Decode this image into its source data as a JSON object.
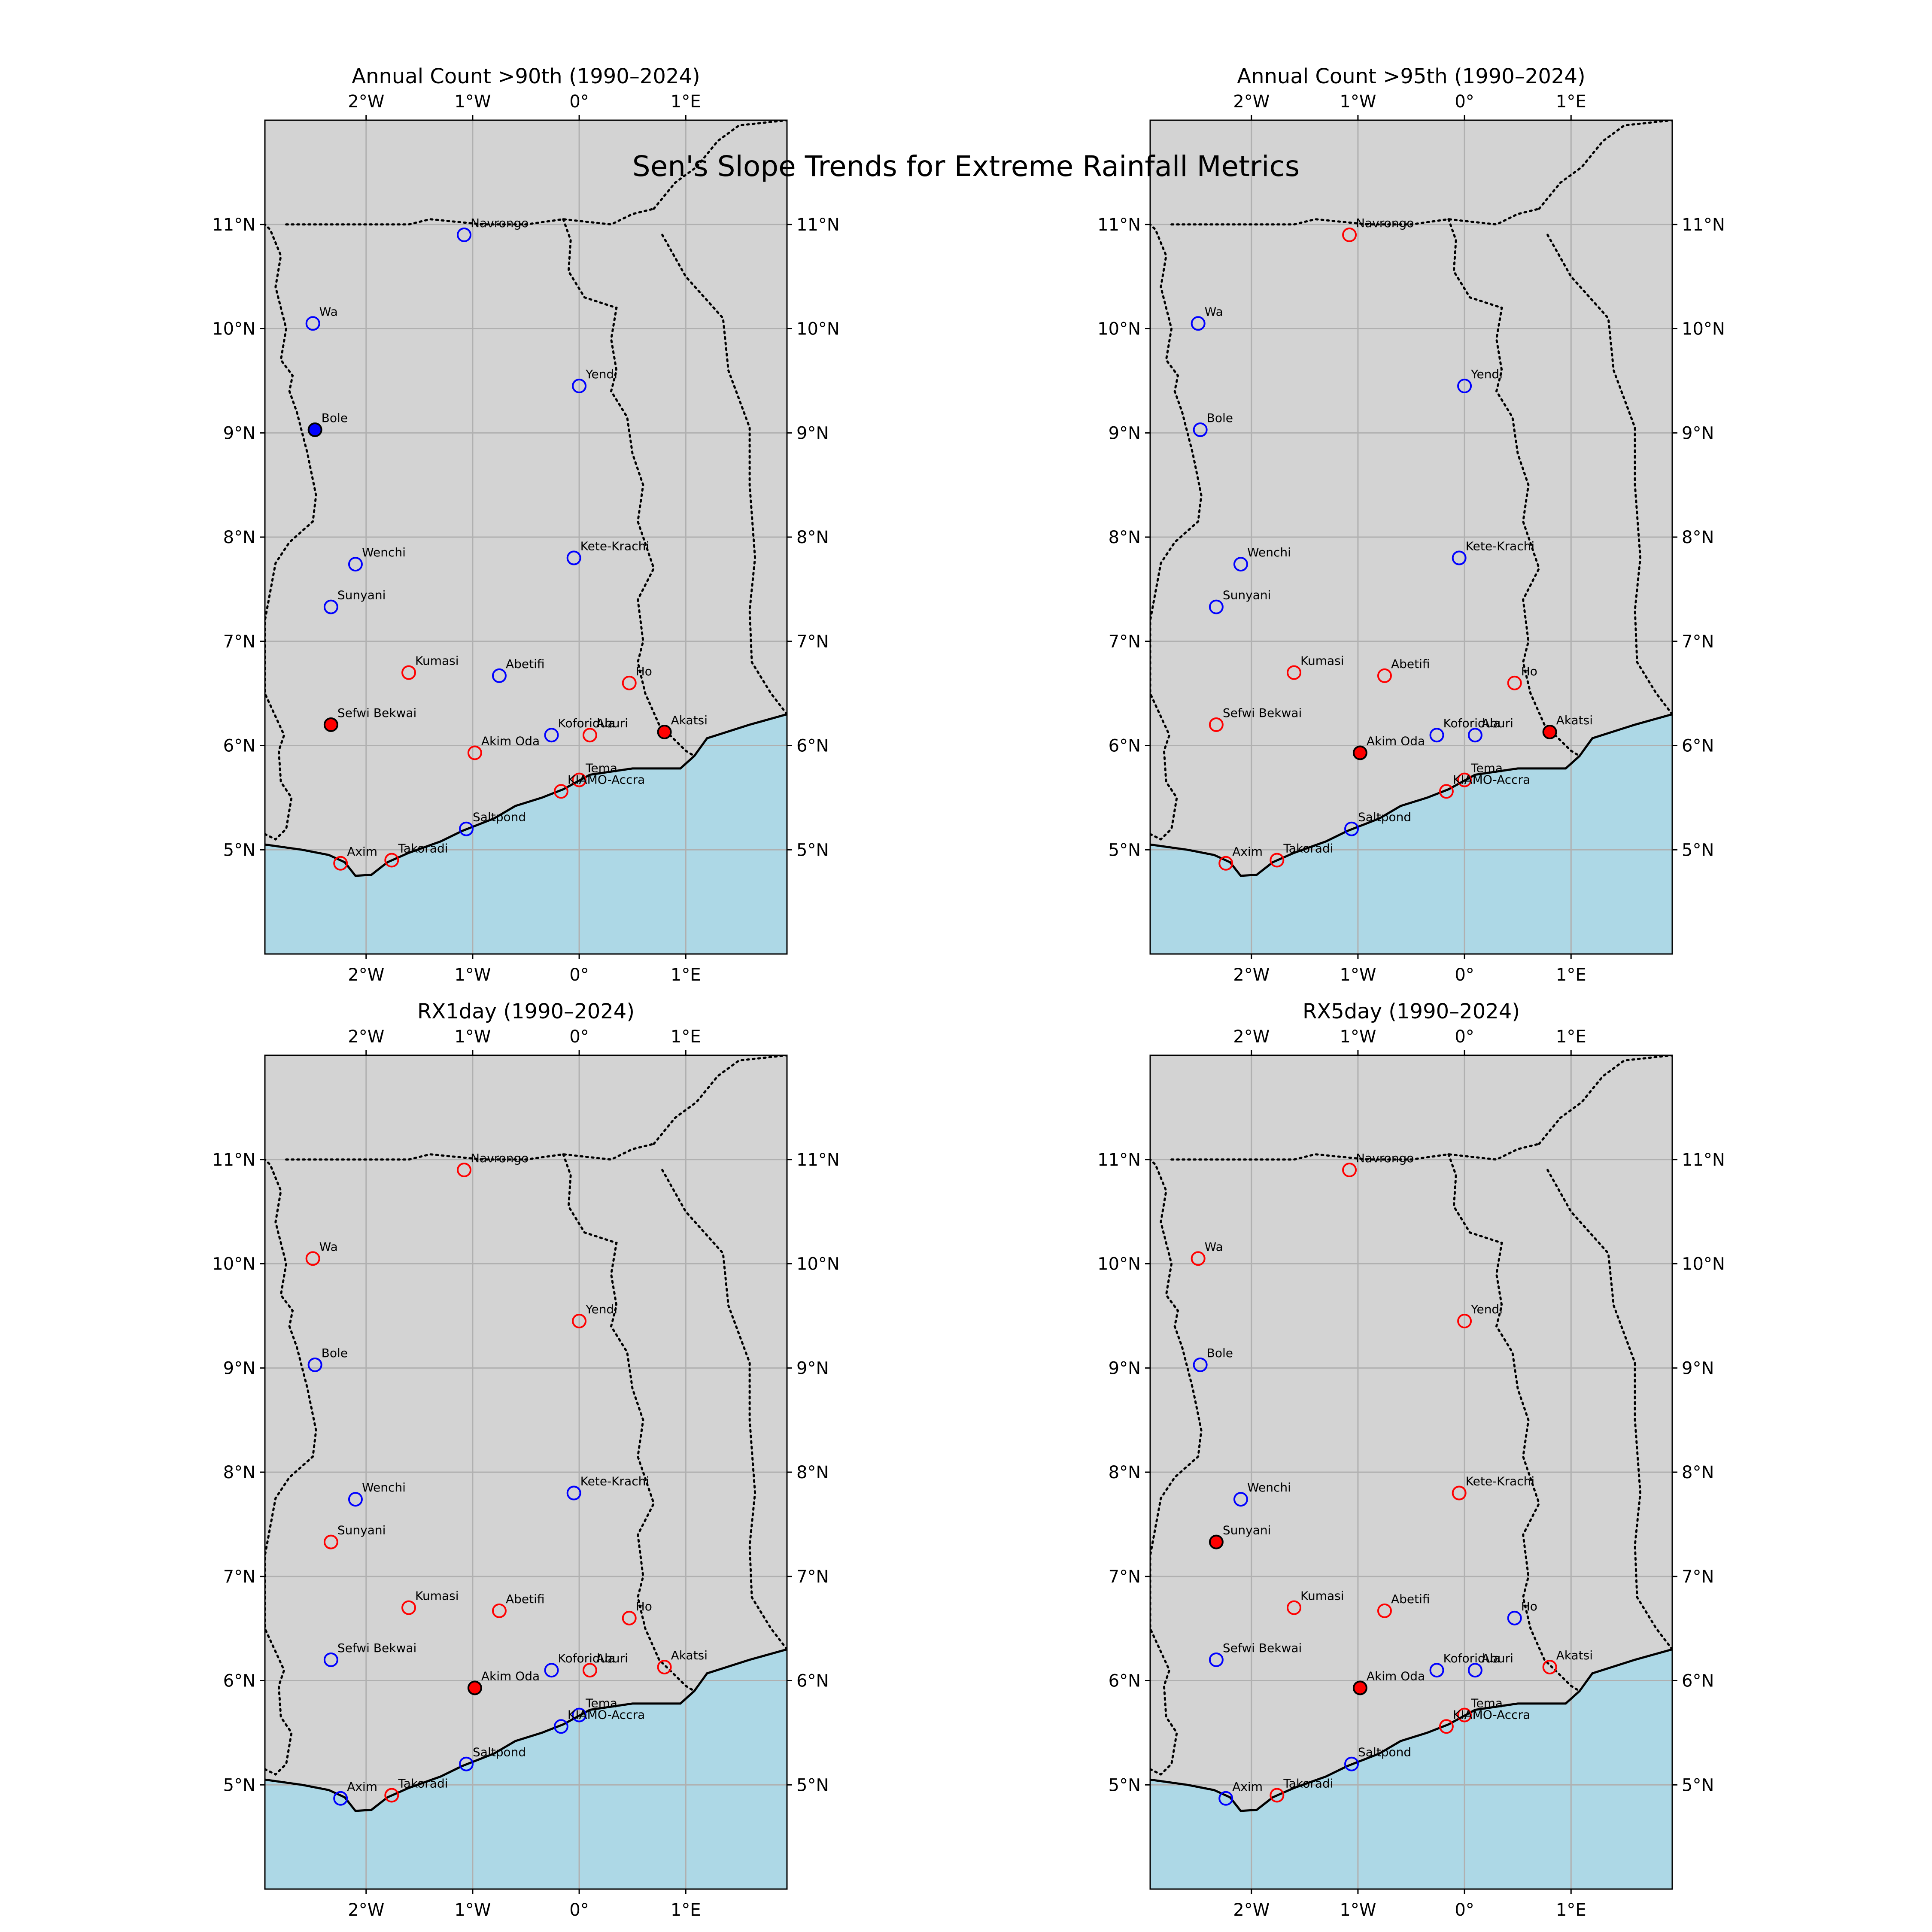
{
  "figure": {
    "title": "Sen's Slope Trends for Extreme Rainfall Metrics",
    "colors": {
      "land": "#d3d3d3",
      "ocean": "#add8e6",
      "gridline": "#b0b0b0",
      "positive_trend": "#ff0000",
      "negative_trend": "#0000ff",
      "significant_fill": "filled marker"
    }
  },
  "axes": {
    "lon_range": [
      -2.95,
      1.95
    ],
    "lat_range": [
      4.0,
      12.0
    ],
    "lon_ticks": [
      {
        "value": -2,
        "label": "2°W"
      },
      {
        "value": -1,
        "label": "1°W"
      },
      {
        "value": 0,
        "label": "0°"
      },
      {
        "value": 1,
        "label": "1°E"
      }
    ],
    "lat_ticks": [
      {
        "value": 5,
        "label": "5°N"
      },
      {
        "value": 6,
        "label": "6°N"
      },
      {
        "value": 7,
        "label": "7°N"
      },
      {
        "value": 8,
        "label": "8°N"
      },
      {
        "value": 9,
        "label": "9°N"
      },
      {
        "value": 10,
        "label": "10°N"
      },
      {
        "value": 11,
        "label": "11°N"
      }
    ]
  },
  "stations": [
    {
      "name": "Navrongo",
      "lon": -1.08,
      "lat": 10.9
    },
    {
      "name": "Wa",
      "lon": -2.5,
      "lat": 10.05
    },
    {
      "name": "Yendi",
      "lon": 0.0,
      "lat": 9.45
    },
    {
      "name": "Bole",
      "lon": -2.48,
      "lat": 9.03
    },
    {
      "name": "Kete-Krachi",
      "lon": -0.05,
      "lat": 7.8
    },
    {
      "name": "Wenchi",
      "lon": -2.1,
      "lat": 7.74
    },
    {
      "name": "Sunyani",
      "lon": -2.33,
      "lat": 7.33
    },
    {
      "name": "Kumasi",
      "lon": -1.6,
      "lat": 6.7
    },
    {
      "name": "Abetifi",
      "lon": -0.75,
      "lat": 6.67
    },
    {
      "name": "Ho",
      "lon": 0.47,
      "lat": 6.6
    },
    {
      "name": "Sefwi Bekwai",
      "lon": -2.33,
      "lat": 6.2
    },
    {
      "name": "Akatsi",
      "lon": 0.8,
      "lat": 6.13
    },
    {
      "name": "Koforidua",
      "lon": -0.26,
      "lat": 6.1
    },
    {
      "name": "Aburi",
      "lon": 0.1,
      "lat": 6.1
    },
    {
      "name": "Akim Oda",
      "lon": -0.98,
      "lat": 5.93
    },
    {
      "name": "Tema",
      "lon": 0.0,
      "lat": 5.67
    },
    {
      "name": "KIAMO-Accra",
      "lon": -0.17,
      "lat": 5.56
    },
    {
      "name": "Saltpond",
      "lon": -1.06,
      "lat": 5.2
    },
    {
      "name": "Takoradi",
      "lon": -1.76,
      "lat": 4.9
    },
    {
      "name": "Axim",
      "lon": -2.24,
      "lat": 4.87
    }
  ],
  "panels": [
    {
      "title": "Annual Count >90th (1990–2024)",
      "trends": [
        {
          "station": "Navrongo",
          "direction": "negative",
          "significant": false
        },
        {
          "station": "Wa",
          "direction": "negative",
          "significant": false
        },
        {
          "station": "Yendi",
          "direction": "negative",
          "significant": false
        },
        {
          "station": "Bole",
          "direction": "negative",
          "significant": true
        },
        {
          "station": "Kete-Krachi",
          "direction": "negative",
          "significant": false
        },
        {
          "station": "Wenchi",
          "direction": "negative",
          "significant": false
        },
        {
          "station": "Sunyani",
          "direction": "negative",
          "significant": false
        },
        {
          "station": "Kumasi",
          "direction": "positive",
          "significant": false
        },
        {
          "station": "Abetifi",
          "direction": "negative",
          "significant": false
        },
        {
          "station": "Ho",
          "direction": "positive",
          "significant": false
        },
        {
          "station": "Sefwi Bekwai",
          "direction": "positive",
          "significant": true
        },
        {
          "station": "Akatsi",
          "direction": "positive",
          "significant": true
        },
        {
          "station": "Koforidua",
          "direction": "negative",
          "significant": false
        },
        {
          "station": "Aburi",
          "direction": "positive",
          "significant": false
        },
        {
          "station": "Akim Oda",
          "direction": "positive",
          "significant": false
        },
        {
          "station": "Tema",
          "direction": "positive",
          "significant": false
        },
        {
          "station": "KIAMO-Accra",
          "direction": "positive",
          "significant": false
        },
        {
          "station": "Saltpond",
          "direction": "negative",
          "significant": false
        },
        {
          "station": "Takoradi",
          "direction": "positive",
          "significant": false
        },
        {
          "station": "Axim",
          "direction": "positive",
          "significant": false
        }
      ]
    },
    {
      "title": "Annual Count >95th (1990–2024)",
      "trends": [
        {
          "station": "Navrongo",
          "direction": "positive",
          "significant": false
        },
        {
          "station": "Wa",
          "direction": "negative",
          "significant": false
        },
        {
          "station": "Yendi",
          "direction": "negative",
          "significant": false
        },
        {
          "station": "Bole",
          "direction": "negative",
          "significant": false
        },
        {
          "station": "Kete-Krachi",
          "direction": "negative",
          "significant": false
        },
        {
          "station": "Wenchi",
          "direction": "negative",
          "significant": false
        },
        {
          "station": "Sunyani",
          "direction": "negative",
          "significant": false
        },
        {
          "station": "Kumasi",
          "direction": "positive",
          "significant": false
        },
        {
          "station": "Abetifi",
          "direction": "positive",
          "significant": false
        },
        {
          "station": "Ho",
          "direction": "positive",
          "significant": false
        },
        {
          "station": "Sefwi Bekwai",
          "direction": "positive",
          "significant": false
        },
        {
          "station": "Akatsi",
          "direction": "positive",
          "significant": true
        },
        {
          "station": "Koforidua",
          "direction": "negative",
          "significant": false
        },
        {
          "station": "Aburi",
          "direction": "negative",
          "significant": false
        },
        {
          "station": "Akim Oda",
          "direction": "positive",
          "significant": true
        },
        {
          "station": "Tema",
          "direction": "positive",
          "significant": false
        },
        {
          "station": "KIAMO-Accra",
          "direction": "positive",
          "significant": false
        },
        {
          "station": "Saltpond",
          "direction": "negative",
          "significant": false
        },
        {
          "station": "Takoradi",
          "direction": "positive",
          "significant": false
        },
        {
          "station": "Axim",
          "direction": "positive",
          "significant": false
        }
      ]
    },
    {
      "title": "RX1day (1990–2024)",
      "trends": [
        {
          "station": "Navrongo",
          "direction": "positive",
          "significant": false
        },
        {
          "station": "Wa",
          "direction": "positive",
          "significant": false
        },
        {
          "station": "Yendi",
          "direction": "positive",
          "significant": false
        },
        {
          "station": "Bole",
          "direction": "negative",
          "significant": false
        },
        {
          "station": "Kete-Krachi",
          "direction": "negative",
          "significant": false
        },
        {
          "station": "Wenchi",
          "direction": "negative",
          "significant": false
        },
        {
          "station": "Sunyani",
          "direction": "positive",
          "significant": false
        },
        {
          "station": "Kumasi",
          "direction": "positive",
          "significant": false
        },
        {
          "station": "Abetifi",
          "direction": "positive",
          "significant": false
        },
        {
          "station": "Ho",
          "direction": "positive",
          "significant": false
        },
        {
          "station": "Sefwi Bekwai",
          "direction": "negative",
          "significant": false
        },
        {
          "station": "Akatsi",
          "direction": "positive",
          "significant": false
        },
        {
          "station": "Koforidua",
          "direction": "negative",
          "significant": false
        },
        {
          "station": "Aburi",
          "direction": "positive",
          "significant": false
        },
        {
          "station": "Akim Oda",
          "direction": "positive",
          "significant": true
        },
        {
          "station": "Tema",
          "direction": "negative",
          "significant": false
        },
        {
          "station": "KIAMO-Accra",
          "direction": "negative",
          "significant": false
        },
        {
          "station": "Saltpond",
          "direction": "negative",
          "significant": false
        },
        {
          "station": "Takoradi",
          "direction": "positive",
          "significant": false
        },
        {
          "station": "Axim",
          "direction": "negative",
          "significant": false
        }
      ]
    },
    {
      "title": "RX5day (1990–2024)",
      "trends": [
        {
          "station": "Navrongo",
          "direction": "positive",
          "significant": false
        },
        {
          "station": "Wa",
          "direction": "positive",
          "significant": false
        },
        {
          "station": "Yendi",
          "direction": "positive",
          "significant": false
        },
        {
          "station": "Bole",
          "direction": "negative",
          "significant": false
        },
        {
          "station": "Kete-Krachi",
          "direction": "positive",
          "significant": false
        },
        {
          "station": "Wenchi",
          "direction": "negative",
          "significant": false
        },
        {
          "station": "Sunyani",
          "direction": "positive",
          "significant": true
        },
        {
          "station": "Kumasi",
          "direction": "positive",
          "significant": false
        },
        {
          "station": "Abetifi",
          "direction": "positive",
          "significant": false
        },
        {
          "station": "Ho",
          "direction": "negative",
          "significant": false
        },
        {
          "station": "Sefwi Bekwai",
          "direction": "negative",
          "significant": false
        },
        {
          "station": "Akatsi",
          "direction": "positive",
          "significant": false
        },
        {
          "station": "Koforidua",
          "direction": "negative",
          "significant": false
        },
        {
          "station": "Aburi",
          "direction": "negative",
          "significant": false
        },
        {
          "station": "Akim Oda",
          "direction": "positive",
          "significant": true
        },
        {
          "station": "Tema",
          "direction": "positive",
          "significant": false
        },
        {
          "station": "KIAMO-Accra",
          "direction": "positive",
          "significant": false
        },
        {
          "station": "Saltpond",
          "direction": "negative",
          "significant": false
        },
        {
          "station": "Takoradi",
          "direction": "positive",
          "significant": false
        },
        {
          "station": "Axim",
          "direction": "negative",
          "significant": false
        }
      ]
    }
  ]
}
